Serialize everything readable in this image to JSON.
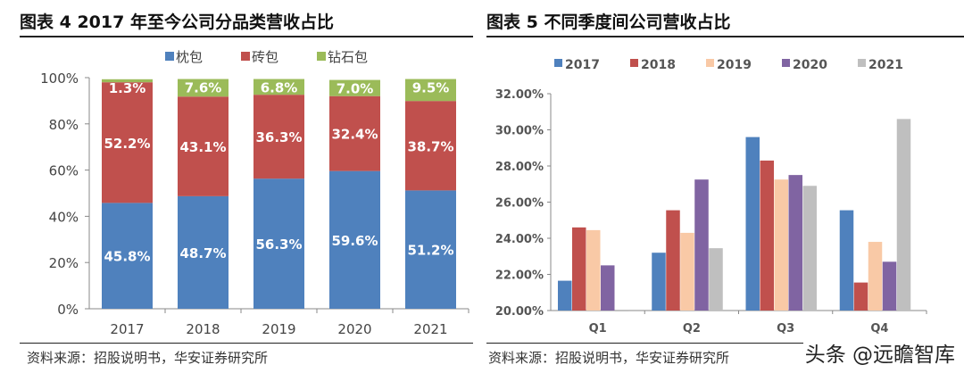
{
  "footer": {
    "source": "资料来源：招股说明书，华安证券研究所",
    "watermark": "头条 @远瞻智库"
  },
  "chart_data": [
    {
      "type": "bar",
      "stacked": true,
      "title": "图表 4 2017 年至今公司分品类营收占比",
      "categories": [
        "2017",
        "2018",
        "2019",
        "2020",
        "2021"
      ],
      "ylim": [
        0,
        100
      ],
      "yticks": [
        "0%",
        "20%",
        "40%",
        "60%",
        "80%",
        "100%"
      ],
      "legend": "top",
      "series": [
        {
          "name": "枕包",
          "color": "#4f81bd",
          "values": [
            45.8,
            48.7,
            56.3,
            59.6,
            51.2
          ],
          "labels": [
            "45.8%",
            "48.7%",
            "56.3%",
            "59.6%",
            "51.2%"
          ]
        },
        {
          "name": "砖包",
          "color": "#c0504d",
          "values": [
            52.2,
            43.1,
            36.3,
            32.4,
            38.7
          ],
          "labels": [
            "52.2%",
            "43.1%",
            "36.3%",
            "32.4%",
            "38.7%"
          ]
        },
        {
          "name": "钻石包",
          "color": "#9bbb59",
          "values": [
            1.3,
            7.6,
            6.8,
            7.0,
            9.5
          ],
          "labels": [
            "1.3%",
            "7.6%",
            "6.8%",
            "7.0%",
            "9.5%"
          ]
        }
      ]
    },
    {
      "type": "bar",
      "title": "图表 5  不同季度间公司营收占比",
      "categories": [
        "Q1",
        "Q2",
        "Q3",
        "Q4"
      ],
      "ylim": [
        20,
        32
      ],
      "yticks": [
        "20.00%",
        "22.00%",
        "24.00%",
        "26.00%",
        "28.00%",
        "30.00%",
        "32.00%"
      ],
      "legend": "top",
      "series": [
        {
          "name": "2017",
          "color": "#4f81bd",
          "values": [
            21.65,
            23.2,
            29.6,
            25.55
          ]
        },
        {
          "name": "2018",
          "color": "#c0504d",
          "values": [
            24.6,
            25.55,
            28.3,
            21.55
          ]
        },
        {
          "name": "2019",
          "color": "#f9c9a6",
          "values": [
            24.45,
            24.3,
            27.25,
            23.8
          ]
        },
        {
          "name": "2020",
          "color": "#8064a2",
          "values": [
            22.5,
            27.25,
            27.5,
            22.7
          ]
        },
        {
          "name": "2021",
          "color": "#bfbfbf",
          "values": [
            20.0,
            23.45,
            26.9,
            30.6
          ]
        }
      ]
    }
  ]
}
